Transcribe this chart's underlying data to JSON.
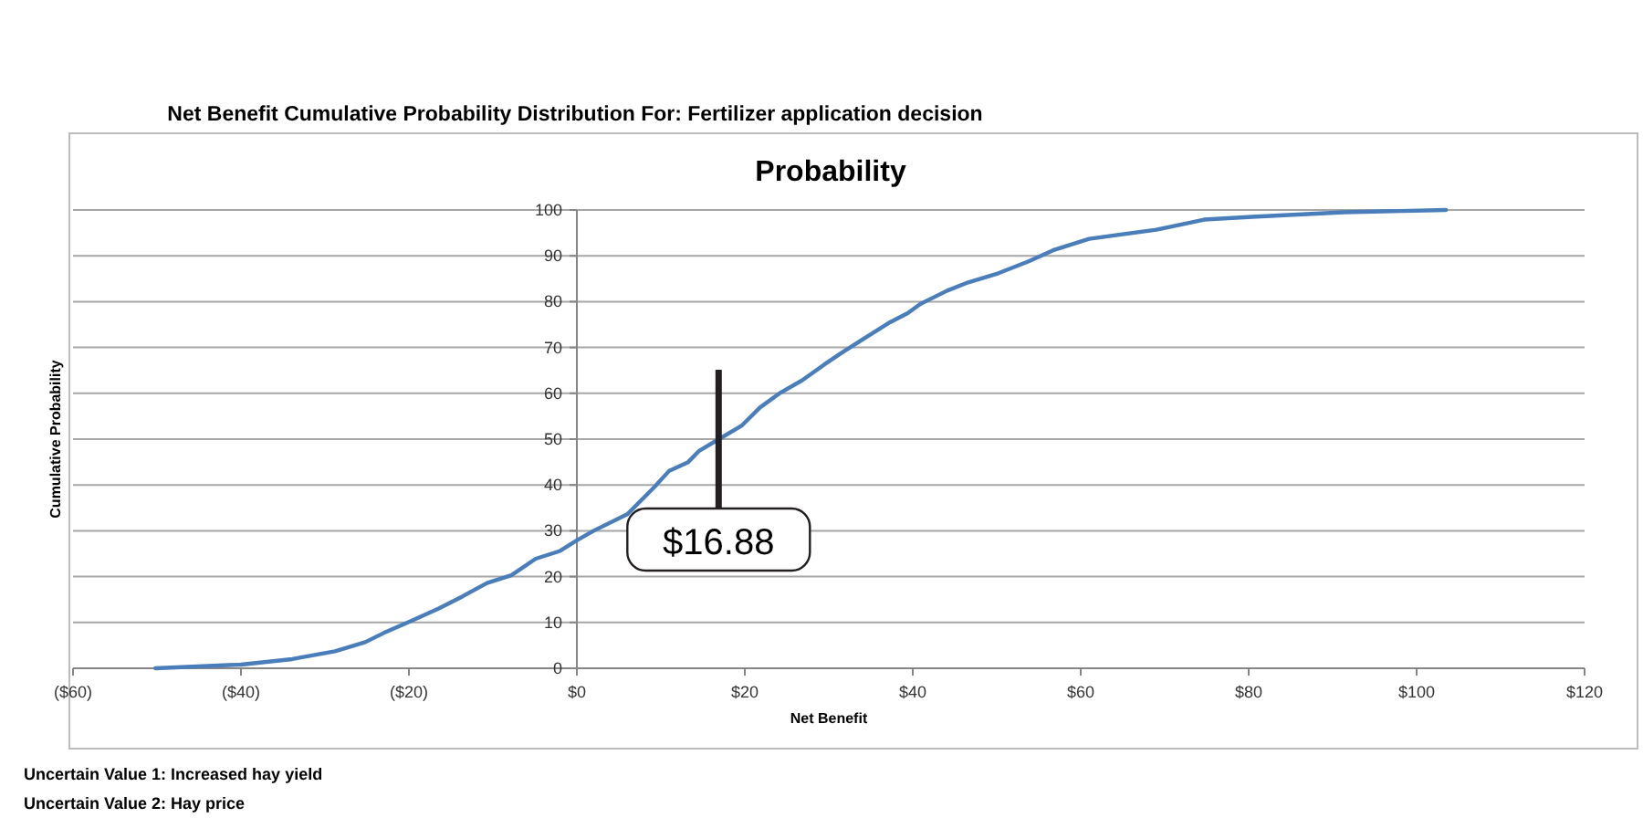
{
  "chart_data": {
    "type": "line",
    "title": "Probability",
    "subtitle": "Net Benefit Cumulative Probability Distribution For: Fertilizer application decision",
    "xlabel": "Net Benefit",
    "ylabel": "Cumulative Probability",
    "annotations": [
      {
        "text": "$16.88",
        "x": 16.88,
        "y": 50
      },
      "Uncertain Value 1: Increased hay yield",
      "Uncertain Value 2: Hay price"
    ],
    "xlim": [
      -60,
      120
    ],
    "xticks": [
      {
        "value": -60,
        "label": "($60)"
      },
      {
        "value": -40,
        "label": "($40)"
      },
      {
        "value": -20,
        "label": "($20)"
      },
      {
        "value": 0,
        "label": "$0"
      },
      {
        "value": 20,
        "label": "$20"
      },
      {
        "value": 40,
        "label": "$40"
      },
      {
        "value": 60,
        "label": "$60"
      },
      {
        "value": 80,
        "label": "$80"
      },
      {
        "value": 100,
        "label": "$100"
      },
      {
        "value": 120,
        "label": "$120"
      }
    ],
    "ylim": [
      0,
      100
    ],
    "yticks": [
      0,
      10,
      20,
      30,
      40,
      50,
      60,
      70,
      80,
      90,
      100
    ],
    "grid": "y",
    "marker": "none",
    "line_style": "solid",
    "series": [
      {
        "color": "#4a7ebb",
        "x": [
          -50.2,
          -40,
          -33.9,
          -28.8,
          -25.2,
          -23,
          -20,
          -16.5,
          -13.6,
          -10.7,
          -7.8,
          -4.9,
          -2,
          0,
          2,
          6,
          9.2,
          11,
          13.2,
          14.6,
          17.1,
          19.6,
          21.8,
          24.3,
          26.8,
          29.4,
          31.5,
          34.4,
          37.3,
          39.4,
          40.9,
          44.1,
          46.6,
          50.2,
          53.8,
          56.7,
          61,
          69,
          74.7,
          80.4,
          91.3,
          103.5
        ],
        "values": [
          0,
          0.8,
          2,
          3.7,
          5.7,
          7.7,
          10.1,
          13,
          15.7,
          18.6,
          20.3,
          23.9,
          25.6,
          27.9,
          30,
          33.6,
          39.5,
          43.1,
          44.9,
          47.5,
          50.2,
          52.9,
          56.9,
          60.2,
          62.8,
          66.2,
          68.8,
          72.2,
          75.5,
          77.5,
          79.5,
          82.4,
          84.2,
          86.2,
          88.8,
          91.2,
          93.7,
          95.7,
          97.9,
          98.5,
          99.5,
          100
        ]
      }
    ]
  }
}
